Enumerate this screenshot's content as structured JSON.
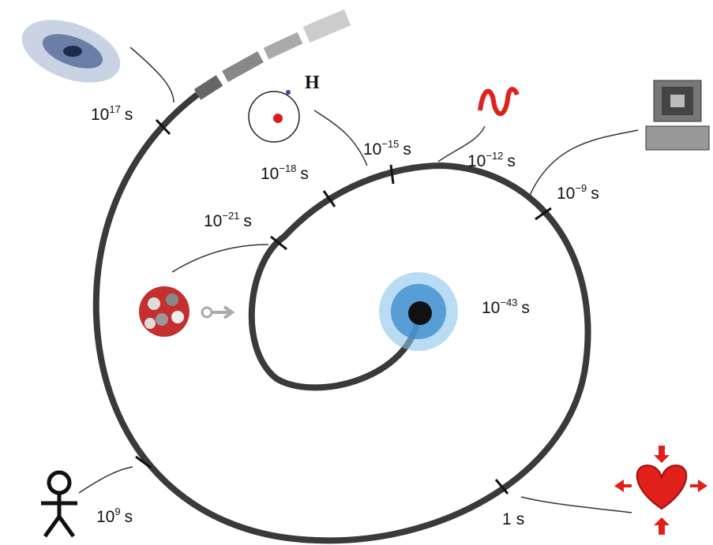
{
  "diagram": {
    "labels": [
      {
        "base": "10",
        "exponent": "17",
        "unit": "s"
      },
      {
        "base": "10",
        "exponent": "−18",
        "unit": "s"
      },
      {
        "base": "10",
        "exponent": "−15",
        "unit": "s"
      },
      {
        "base": "10",
        "exponent": "−12",
        "unit": "s"
      },
      {
        "base": "10",
        "exponent": "−9",
        "unit": "s"
      },
      {
        "base": "10",
        "exponent": "−21",
        "unit": "s"
      },
      {
        "base": "10",
        "exponent": "−43",
        "unit": "s"
      },
      {
        "base": "10",
        "exponent": "9",
        "unit": "s"
      },
      {
        "base": "1",
        "unit": "s"
      }
    ],
    "atom_label": "H"
  }
}
